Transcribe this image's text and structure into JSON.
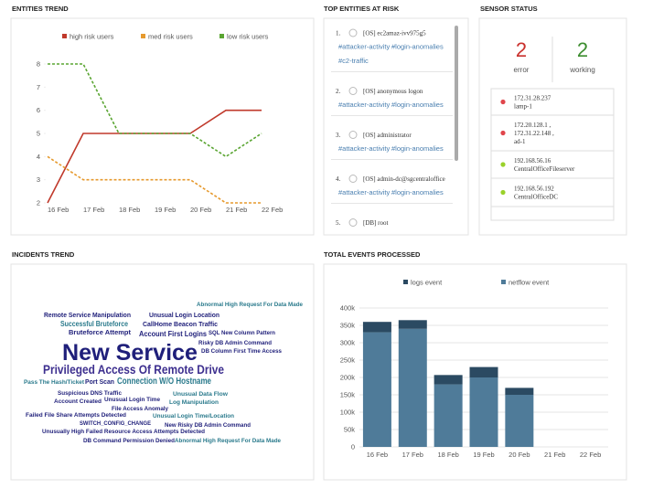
{
  "panels": {
    "entities_trend": "ENTITIES TREND",
    "top_entities": "TOP ENTITIES AT RISK",
    "sensor_status": "SENSOR STATUS",
    "incidents_trend": "INCIDENTS TREND",
    "total_events": "TOTAL EVENTS PROCESSED"
  },
  "chart_data": [
    {
      "type": "line",
      "categories": [
        "16 Feb",
        "17 Feb",
        "18 Feb",
        "19 Feb",
        "20 Feb",
        "21 Feb",
        "22 Feb"
      ],
      "ylim": [
        2,
        8
      ],
      "yticks": [
        2,
        3,
        4,
        5,
        6,
        7,
        8
      ],
      "legend": "top",
      "series": [
        {
          "name": "high risk users",
          "color": "#c0392b",
          "dashed": false,
          "values": [
            2,
            5,
            5,
            5,
            5,
            6,
            6
          ]
        },
        {
          "name": "med risk users",
          "color": "#e69a2e",
          "dashed": true,
          "values": [
            4,
            3,
            3,
            3,
            3,
            2,
            2
          ]
        },
        {
          "name": "low risk users",
          "color": "#5aa532",
          "dashed": true,
          "values": [
            8,
            8,
            5,
            5,
            5,
            4,
            5
          ]
        }
      ]
    },
    {
      "type": "bar",
      "stacked": true,
      "categories": [
        "16 Feb",
        "17 Feb",
        "18 Feb",
        "19 Feb",
        "20 Feb",
        "21 Feb",
        "22 Feb"
      ],
      "ylim": [
        0,
        400000
      ],
      "grid": true,
      "legend": "top",
      "yticks": [
        0,
        {
          "value": 50000,
          "label": "50k"
        },
        {
          "value": 100000,
          "label": "100k"
        },
        {
          "value": 150000,
          "label": "150k"
        },
        {
          "value": 200000,
          "label": "200k"
        },
        {
          "value": 250000,
          "label": "250k"
        },
        {
          "value": 300000,
          "label": "300k"
        },
        {
          "value": 350000,
          "label": "350k"
        },
        {
          "value": 400000,
          "label": "400k"
        }
      ],
      "series": [
        {
          "name": "logs event",
          "color": "#2b4a62",
          "values": [
            30000,
            25000,
            27000,
            30000,
            20000,
            0,
            0
          ]
        },
        {
          "name": "netflow event",
          "color": "#4f7b99",
          "values": [
            330000,
            340000,
            180000,
            200000,
            150000,
            0,
            0
          ]
        }
      ]
    }
  ],
  "top_entities": [
    {
      "rank": "1.",
      "name": "[OS] ec2amaz-ivv975g5",
      "tags": [
        "#attacker-activity",
        "#login-anomalies",
        "#c2-traffic"
      ]
    },
    {
      "rank": "2.",
      "name": "[OS] anonymous logon",
      "tags": [
        "#attacker-activity",
        "#login-anomalies"
      ]
    },
    {
      "rank": "3.",
      "name": "[OS] administrator",
      "tags": [
        "#attacker-activity",
        "#login-anomalies"
      ]
    },
    {
      "rank": "4.",
      "name": "[OS] admin-dc@sgcentraloffice",
      "tags": [
        "#attacker-activity",
        "#login-anomalies"
      ]
    },
    {
      "rank": "5.",
      "name": "[DB] root",
      "tags": []
    }
  ],
  "sensor_status": {
    "error": {
      "count": "2",
      "label": "error"
    },
    "working": {
      "count": "2",
      "label": "working"
    },
    "sensors": [
      {
        "status": "error",
        "lines": [
          "172.31.28.237",
          "lamp-1"
        ]
      },
      {
        "status": "error",
        "lines": [
          "172.20.128.1 ,",
          "172.31.22.148 ,",
          "ad-1"
        ]
      },
      {
        "status": "working",
        "lines": [
          "192.168.56.16",
          "CentralOfficeFileserver"
        ]
      },
      {
        "status": "working",
        "lines": [
          "192.168.56.192",
          "CentralOfficeDC"
        ]
      }
    ]
  },
  "word_cloud": [
    "Abnormal High Request For Data Made",
    "Remote Service Manipulation",
    "Unusual Login Location",
    "Successful Bruteforce",
    "CallHome Beacon Traffic",
    "Bruteforce Attempt",
    "Account First Logins",
    "SQL New Column Pattern",
    "New Service",
    "Risky DB Admin Command",
    "DB Column First Time Access",
    "Privileged Access Of Remote Drive",
    "Pass The Hash/Ticket",
    "Port Scan",
    "Connection W/O Hostname",
    "Suspicious DNS Traffic",
    "Unusual Data Flow",
    "Account Created",
    "Unusual Login Time",
    "Log Manipulation",
    "File Access Anomaly",
    "Failed File Share Attempts Detected",
    "Unusual Login Time/Location",
    "SWITCH_CONFIG_CHANGE",
    "New Risky DB Admin Command",
    "Unusually High Failed Resource Access Attempts Detected",
    "DB Command Permission Denied",
    "Abnormal High Request For Data Made"
  ]
}
